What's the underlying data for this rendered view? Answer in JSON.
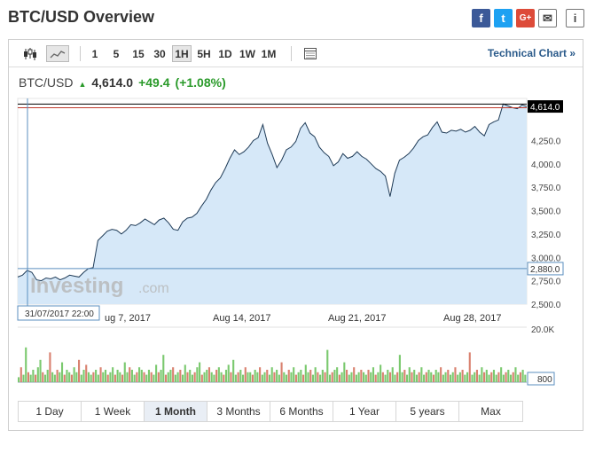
{
  "header": {
    "title": "BTC/USD Overview"
  },
  "social": [
    {
      "name": "facebook-icon",
      "glyph": "f"
    },
    {
      "name": "twitter-icon",
      "glyph": "t"
    },
    {
      "name": "google-plus-icon",
      "glyph": "G+"
    },
    {
      "name": "mail-icon",
      "glyph": "✉"
    },
    {
      "name": "info-icon",
      "glyph": "i"
    }
  ],
  "toolbar": {
    "intervals": [
      "1",
      "5",
      "15",
      "30",
      "1H",
      "5H",
      "1D",
      "1W",
      "1M"
    ],
    "selected_interval": "1H",
    "technical_chart": "Technical Chart »"
  },
  "quote": {
    "pair": "BTC/USD",
    "arrow": "▲",
    "last": "4,614.0",
    "change": "+49.4",
    "change_pct": "(+1.08%)"
  },
  "watermark": {
    "brand": "Investing",
    "suffix": ".com"
  },
  "chart_data": {
    "type": "area",
    "title": "",
    "x_labels": [
      "ug 7, 2017",
      "Aug 14, 2017",
      "Aug 21, 2017",
      "Aug 28, 2017"
    ],
    "y_ticks": [
      "4,250.0",
      "4,000.0",
      "3,750.0",
      "3,500.0",
      "3,250.0",
      "3,000.0",
      "2,750.0",
      "2,500.0"
    ],
    "y_tick_values": [
      4250,
      4000,
      3750,
      3500,
      3250,
      3000,
      2750,
      2500
    ],
    "ylim": [
      2500,
      4700
    ],
    "price_series": [
      2790,
      2810,
      2860,
      2840,
      2760,
      2750,
      2780,
      2770,
      2790,
      2760,
      2780,
      2810,
      2800,
      2790,
      2840,
      2880,
      2890,
      3180,
      3230,
      3280,
      3300,
      3290,
      3250,
      3290,
      3350,
      3340,
      3370,
      3410,
      3380,
      3350,
      3400,
      3420,
      3370,
      3300,
      3290,
      3380,
      3420,
      3430,
      3470,
      3550,
      3620,
      3720,
      3800,
      3850,
      3950,
      4060,
      4150,
      4100,
      4130,
      4180,
      4250,
      4280,
      4420,
      4220,
      4100,
      3960,
      4040,
      4150,
      4180,
      4240,
      4380,
      4440,
      4330,
      4290,
      4180,
      4120,
      4080,
      3980,
      4020,
      4110,
      4060,
      4080,
      4130,
      4080,
      4050,
      4000,
      3950,
      3920,
      3870,
      3650,
      3900,
      4040,
      4070,
      4110,
      4170,
      4250,
      4290,
      4310,
      4390,
      4450,
      4340,
      4330,
      4360,
      4350,
      4370,
      4340,
      4360,
      4400,
      4340,
      4300,
      4420,
      4450,
      4470,
      4640,
      4620,
      4600,
      4590,
      4630,
      4614
    ],
    "last_price": "4,614.0",
    "crosshair_price": "2,880.0",
    "crosshair_time": "31/07/2017 22:00",
    "volume_max_label": "20.0K",
    "volume_current_label": "800",
    "volume_series": [
      2,
      6,
      3,
      14,
      4,
      3,
      5,
      3,
      6,
      9,
      4,
      3,
      5,
      12,
      4,
      3,
      5,
      4,
      8,
      3,
      5,
      4,
      3,
      6,
      4,
      9,
      3,
      5,
      7,
      4,
      3,
      4,
      5,
      3,
      6,
      4,
      5,
      3,
      4,
      6,
      3,
      5,
      4,
      3,
      8,
      4,
      6,
      5,
      3,
      4,
      6,
      5,
      4,
      3,
      5,
      4,
      3,
      7,
      4,
      5,
      11,
      3,
      4,
      5,
      6,
      3,
      4,
      5,
      3,
      7,
      4,
      5,
      3,
      4,
      6,
      8,
      3,
      4,
      5,
      6,
      4,
      3,
      5,
      6,
      4,
      3,
      5,
      7,
      4,
      9,
      3,
      4,
      5,
      3,
      6,
      4,
      4,
      3,
      5,
      4,
      6,
      3,
      4,
      5,
      3,
      6,
      4,
      5,
      3,
      8,
      4,
      3,
      5,
      4,
      6,
      3,
      4,
      5,
      3,
      7,
      4,
      5,
      3,
      6,
      4,
      3,
      5,
      4,
      13,
      3,
      4,
      5,
      6,
      3,
      4,
      8,
      5,
      3,
      4,
      6,
      3,
      4,
      5,
      4,
      3,
      5,
      4,
      6,
      3,
      4,
      7,
      4,
      3,
      5,
      4,
      6,
      3,
      4,
      11,
      4,
      5,
      3,
      6,
      4,
      5,
      3,
      4,
      6,
      3,
      4,
      5,
      4,
      3,
      5,
      4,
      6,
      3,
      4,
      5,
      3,
      4,
      6,
      3,
      4,
      5,
      3,
      4,
      12,
      3,
      4,
      5,
      3,
      6,
      4,
      5,
      3,
      4,
      5,
      3,
      4,
      6,
      3,
      4,
      5,
      3,
      4,
      6,
      3,
      4,
      5,
      3
    ],
    "volume_colors": {
      "up": "#7bc96f",
      "down": "#d9816f"
    }
  },
  "ranges": {
    "items": [
      "1 Day",
      "1 Week",
      "1 Month",
      "3 Months",
      "6 Months",
      "1 Year",
      "5 years",
      "Max"
    ],
    "active": "1 Month"
  },
  "colors": {
    "accent_blue": "#2a5a8a",
    "positive": "#2a9a2a",
    "area_fill": "#d6e8f8",
    "area_line": "#1f3b57"
  }
}
